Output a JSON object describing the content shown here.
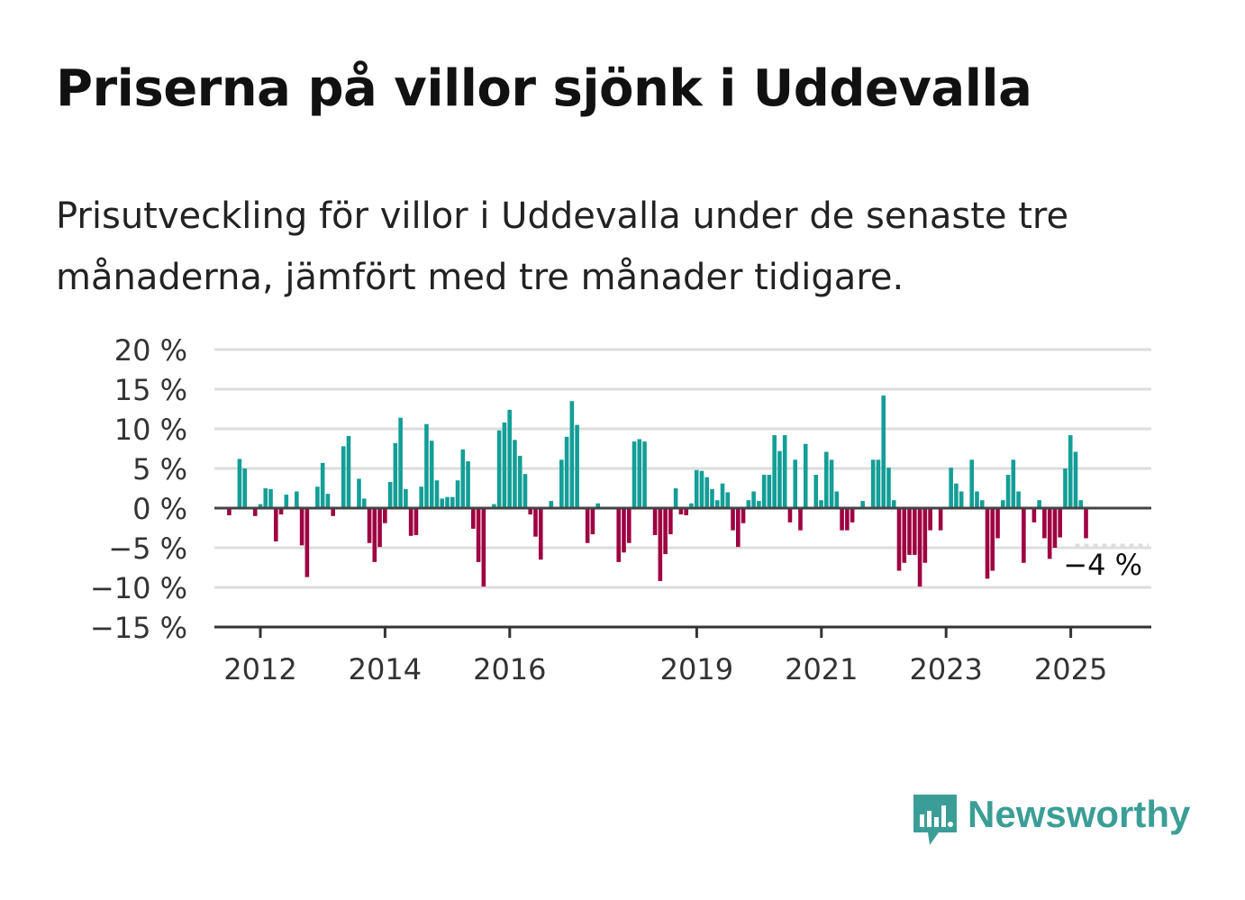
{
  "title": "Priserna på villor sjönk i Uddevalla",
  "subtitle": "Prisutveckling för villor i Uddevalla under de senaste tre månaderna, jämfört med tre månader tidigare.",
  "brand": {
    "name": "Newsworthy"
  },
  "colors": {
    "positive": "#139e97",
    "negative": "#9e0042",
    "grid": "#dddddd",
    "axis": "#333333"
  },
  "chart_data": {
    "type": "bar",
    "title": "",
    "xlabel": "",
    "ylabel": "",
    "ylim": [
      -15,
      20
    ],
    "yticks": [
      20,
      15,
      10,
      5,
      0,
      -5,
      -10,
      -15
    ],
    "ytick_labels": [
      "20 %",
      "15 %",
      "10 %",
      "5 %",
      "0 %",
      "−5 %",
      "−10 %",
      "−15 %"
    ],
    "xticks": [
      2012,
      2014,
      2016,
      2019,
      2021,
      2023,
      2025
    ],
    "x_start": 2011.5,
    "x_step": 0.0833,
    "grid": true,
    "last_value_label": "−4 %",
    "values": [
      -0.9,
      0,
      6.2,
      5.0,
      0,
      -1.0,
      0.5,
      2.5,
      2.4,
      -4.2,
      -0.8,
      1.7,
      0,
      2.1,
      -4.7,
      -8.7,
      0,
      2.7,
      5.7,
      1.8,
      -1.0,
      0,
      7.8,
      9.1,
      0,
      3.7,
      1.2,
      -4.4,
      -6.8,
      -4.9,
      -1.9,
      3.3,
      8.2,
      11.4,
      2.4,
      -3.5,
      -3.4,
      2.7,
      10.6,
      8.5,
      3.5,
      1.2,
      1.4,
      1.4,
      3.5,
      7.4,
      5.9,
      -2.6,
      -6.8,
      -9.9,
      0,
      0.5,
      9.8,
      10.8,
      12.4,
      8.6,
      6.6,
      4.3,
      -0.8,
      -3.6,
      -6.5,
      0,
      0.9,
      0,
      6.1,
      9.0,
      13.5,
      10.5,
      0,
      -4.4,
      -3.3,
      0.6,
      0,
      0,
      0,
      -6.8,
      -5.6,
      -4.4,
      8.4,
      8.7,
      8.4,
      0,
      -3.4,
      -9.2,
      -5.8,
      -3.3,
      2.5,
      -0.8,
      -0.9,
      0.6,
      4.8,
      4.7,
      3.9,
      2.4,
      1.0,
      3.1,
      2.0,
      -2.8,
      -4.9,
      -1.9,
      1.0,
      2.1,
      0.9,
      4.2,
      4.2,
      9.2,
      7.2,
      9.2,
      -1.8,
      6.1,
      -2.8,
      8.1,
      0,
      4.2,
      1.0,
      7.1,
      6.1,
      2.1,
      -2.8,
      -2.8,
      -1.8,
      0,
      0.9,
      0,
      6.1,
      6.1,
      14.2,
      5.1,
      1.0,
      -7.9,
      -6.9,
      -5.9,
      -5.9,
      -9.9,
      -6.9,
      -2.8,
      0,
      -2.8,
      0,
      5.1,
      3.1,
      2.1,
      0,
      6.1,
      2.1,
      1.0,
      -8.9,
      -7.9,
      -3.8,
      1.0,
      4.2,
      6.1,
      2.1,
      -6.9,
      0,
      -1.8,
      1.0,
      -3.8,
      -6.4,
      -5.0,
      -3.7,
      5.0,
      9.2,
      7.1,
      1.0,
      -3.8
    ]
  }
}
